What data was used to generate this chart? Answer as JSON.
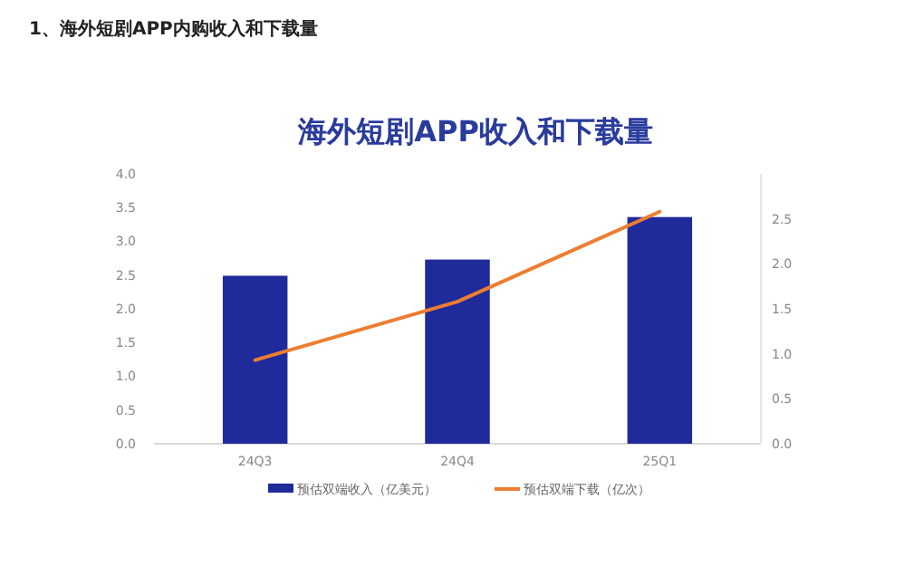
{
  "chart_data": {
    "type": "bar",
    "title": "海外短剧APP收入和下载量",
    "annotations": [
      "1、海外短剧APP内购收入和下载量"
    ],
    "categories": [
      "24Q3",
      "24Q4",
      "25Q1"
    ],
    "series": [
      {
        "name": "预估双端收入（亿美元）",
        "color": "#1f2a9b",
        "values": [
          2.49,
          2.73,
          3.36
        ]
      },
      {
        "name": "预估双端下载（亿次）",
        "type": "line",
        "axis": "y2",
        "color": "#ed7d31",
        "values": [
          0.93,
          1.58,
          2.58
        ]
      }
    ],
    "ylim": [
      0,
      4
    ],
    "yticks": [
      {
        "value": 0,
        "label": "0.0"
      },
      {
        "value": 0.5,
        "label": "0.5"
      },
      {
        "value": 1,
        "label": "1.0"
      },
      {
        "value": 1.5,
        "label": "1.5"
      },
      {
        "value": 2,
        "label": "2.0"
      },
      {
        "value": 2.5,
        "label": "2.5"
      },
      {
        "value": 3,
        "label": "3.0"
      },
      {
        "value": 3.5,
        "label": "3.5"
      },
      {
        "value": 4,
        "label": "4.0"
      }
    ],
    "y2lim": [
      0,
      3
    ],
    "y2ticks": [
      {
        "value": 0,
        "label": "0.0"
      },
      {
        "value": 0.5,
        "label": "0.5"
      },
      {
        "value": 1,
        "label": "1.0"
      },
      {
        "value": 1.5,
        "label": "1.5"
      },
      {
        "value": 2,
        "label": "2.0"
      },
      {
        "value": 2.5,
        "label": "2.5"
      }
    ],
    "legend": "bottom"
  }
}
